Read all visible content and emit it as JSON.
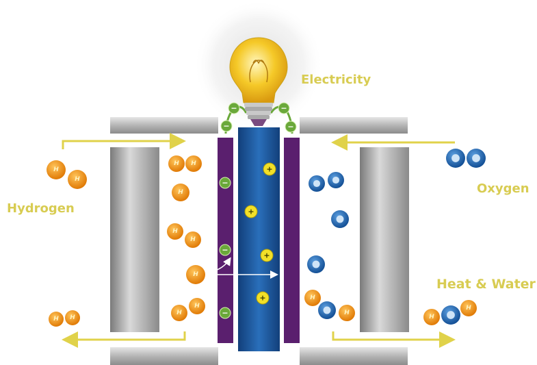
{
  "labels": {
    "electricity": "Electricity",
    "hydrogen": "Hydrogen",
    "oxygen": "Oxygen",
    "heat_water": "Heat & Water"
  },
  "symbols": {
    "hydrogen_atom": "H",
    "positive_ion": "+",
    "electron": "−"
  },
  "colors": {
    "label_gold": "#d8cc52",
    "hydrogen_orange": "#f0900c",
    "oxygen_blue": "#1f6bb5",
    "membrane_blue": "#1c5fa8",
    "electrode_purple": "#5a1f6e",
    "electron_green": "#6aa83a",
    "ion_yellow": "#f2e028",
    "arrow_yellow": "#e0d24a",
    "plate_gray": "#9a9a9a"
  }
}
